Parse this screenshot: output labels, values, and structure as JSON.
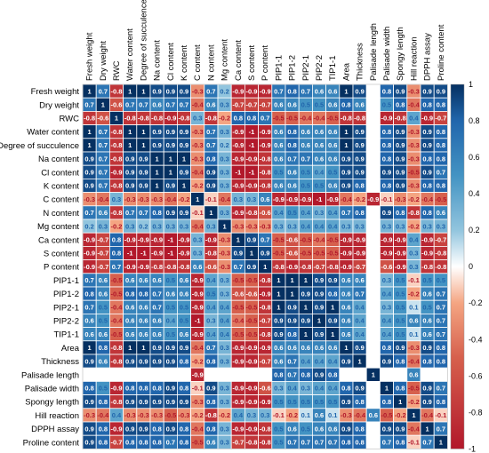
{
  "chart_data": {
    "type": "heatmap",
    "variables": [
      "Fresh weight",
      "Dry weight",
      "RWC",
      "Water content",
      "Degree of succulence",
      "Na content",
      "Cl content",
      "K content",
      "C content",
      "N content",
      "Mg content",
      "Ca content",
      "S content",
      "P content",
      "PIP1-1",
      "PIP1-2",
      "PIP2-1",
      "PIP2-2",
      "TIP1-1",
      "Area",
      "Thickness",
      "Palisade length",
      "Palisade width",
      "Spongy length",
      "Hill reaction",
      "DPPH assay",
      "Proline content"
    ],
    "matrix": [
      [
        1,
        0.7,
        -0.8,
        1,
        1,
        0.9,
        0.9,
        0.9,
        -0.3,
        0.7,
        0.2,
        -0.9,
        -0.9,
        -0.9,
        0.7,
        0.8,
        0.7,
        0.6,
        0.6,
        1,
        0.9,
        null,
        0.8,
        0.9,
        -0.3,
        0.9,
        0.9
      ],
      [
        0.7,
        1,
        -0.6,
        0.7,
        0.7,
        0.6,
        0.7,
        0.7,
        -0.4,
        0.6,
        0.3,
        -0.7,
        -0.7,
        -0.7,
        0.6,
        0.6,
        0.5,
        0.5,
        0.6,
        0.8,
        0.6,
        null,
        0.5,
        0.8,
        -0.4,
        0.8,
        0.8
      ],
      [
        -0.8,
        -0.6,
        1,
        -0.8,
        -0.8,
        -0.8,
        -0.9,
        -0.8,
        0.3,
        -0.8,
        -0.2,
        0.8,
        0.8,
        0.7,
        -0.5,
        -0.5,
        -0.4,
        -0.4,
        -0.5,
        -0.8,
        -0.8,
        null,
        -0.9,
        -0.8,
        0.4,
        -0.9,
        -0.7
      ],
      [
        1,
        0.7,
        -0.8,
        1,
        1,
        0.9,
        0.9,
        0.9,
        -0.3,
        0.7,
        0.3,
        -0.9,
        -1,
        -0.9,
        0.6,
        0.8,
        0.6,
        0.6,
        0.6,
        1,
        0.9,
        null,
        0.8,
        0.9,
        -0.3,
        0.9,
        0.8
      ],
      [
        1,
        0.7,
        -0.8,
        1,
        1,
        0.9,
        0.9,
        0.9,
        -0.3,
        0.7,
        0.2,
        -0.9,
        -1,
        -0.9,
        0.6,
        0.8,
        0.6,
        0.6,
        0.6,
        1,
        0.9,
        null,
        0.8,
        0.9,
        -0.3,
        0.9,
        0.8
      ],
      [
        0.9,
        0.7,
        -0.8,
        0.9,
        0.9,
        1,
        1,
        1,
        -0.3,
        0.8,
        0.3,
        -0.9,
        -0.9,
        -0.8,
        0.6,
        0.7,
        0.7,
        0.6,
        0.6,
        0.9,
        0.9,
        null,
        0.8,
        0.9,
        -0.3,
        0.8,
        0.8
      ],
      [
        0.9,
        0.7,
        -0.9,
        0.9,
        0.9,
        1,
        1,
        0.9,
        -0.4,
        0.9,
        0.3,
        -1,
        -1,
        -0.8,
        0.5,
        0.6,
        0.5,
        0.4,
        0.5,
        0.9,
        0.9,
        null,
        0.9,
        0.9,
        -0.5,
        0.9,
        0.7
      ],
      [
        0.9,
        0.7,
        -0.8,
        0.9,
        0.9,
        1,
        0.9,
        1,
        -0.2,
        0.9,
        0.3,
        -0.9,
        -0.9,
        -0.8,
        0.6,
        0.6,
        0.5,
        0.5,
        0.6,
        0.9,
        0.8,
        null,
        0.8,
        0.9,
        -0.3,
        0.8,
        0.8
      ],
      [
        -0.3,
        -0.4,
        0.3,
        -0.3,
        -0.3,
        -0.3,
        -0.4,
        -0.2,
        1,
        -0.1,
        -0.4,
        0.3,
        0.3,
        0.6,
        -0.9,
        -0.9,
        -0.9,
        -1,
        -0.9,
        -0.4,
        -0.2,
        -0.9,
        -0.1,
        -0.3,
        -0.2,
        -0.4,
        -0.5
      ],
      [
        0.7,
        0.6,
        -0.8,
        0.7,
        0.7,
        0.8,
        0.9,
        0.9,
        -0.1,
        1,
        0.3,
        -0.9,
        -0.8,
        -0.6,
        0.4,
        0.5,
        0.4,
        0.3,
        0.4,
        0.7,
        0.8,
        null,
        0.9,
        0.8,
        -0.8,
        0.8,
        0.6
      ],
      [
        0.2,
        0.3,
        -0.2,
        0.3,
        0.2,
        0.3,
        0.3,
        0.3,
        -0.4,
        0.3,
        1,
        -0.3,
        -0.3,
        -0.3,
        0.3,
        0.3,
        0.4,
        0.4,
        0.4,
        0.3,
        0.3,
        null,
        0.3,
        0.3,
        -0.2,
        0.3,
        0.3
      ],
      [
        -0.9,
        -0.7,
        0.8,
        -0.9,
        -0.9,
        -0.9,
        -1,
        -0.9,
        0.3,
        -0.9,
        -0.3,
        1,
        0.9,
        0.7,
        -0.5,
        -0.6,
        -0.5,
        -0.4,
        -0.5,
        -0.9,
        -0.9,
        null,
        -0.9,
        -0.9,
        0.4,
        -0.9,
        -0.7
      ],
      [
        -0.9,
        -0.7,
        0.8,
        -1,
        -1,
        -0.9,
        -1,
        -0.9,
        0.3,
        -0.8,
        -0.3,
        0.9,
        1,
        0.9,
        -0.5,
        -0.6,
        -0.5,
        -0.5,
        -0.5,
        -0.9,
        -0.9,
        null,
        -0.9,
        -0.9,
        0.3,
        -0.9,
        -0.8
      ],
      [
        -0.9,
        -0.7,
        0.7,
        -0.9,
        -0.9,
        -0.8,
        -0.8,
        -0.8,
        0.6,
        -0.6,
        -0.3,
        0.7,
        0.9,
        1,
        -0.8,
        -0.9,
        -0.8,
        -0.7,
        -0.8,
        -0.9,
        -0.7,
        null,
        -0.6,
        -0.9,
        0.3,
        -0.8,
        -0.8
      ],
      [
        0.7,
        0.6,
        -0.5,
        0.6,
        0.6,
        0.6,
        0.5,
        0.6,
        -0.9,
        0.4,
        0.3,
        -0.5,
        -0.5,
        -0.8,
        1,
        1,
        1,
        0.9,
        0.9,
        0.6,
        0.6,
        null,
        0.3,
        0.5,
        -0.1,
        0.5,
        0.5
      ],
      [
        0.8,
        0.6,
        -0.5,
        0.8,
        0.8,
        0.7,
        0.6,
        0.6,
        -0.9,
        0.5,
        0.3,
        -0.6,
        -0.6,
        -0.9,
        1,
        1,
        0.9,
        0.9,
        0.8,
        0.6,
        0.7,
        null,
        0.4,
        0.5,
        -0.2,
        0.6,
        0.7
      ],
      [
        0.7,
        0.5,
        -0.4,
        0.6,
        0.6,
        0.7,
        0.5,
        0.5,
        -0.9,
        0.4,
        0.4,
        -0.5,
        -0.5,
        -0.8,
        1,
        0.9,
        1,
        0.9,
        1,
        0.6,
        0.4,
        null,
        0.3,
        0.5,
        0.1,
        0.5,
        0.7
      ],
      [
        0.6,
        0.5,
        -0.4,
        0.6,
        0.6,
        0.6,
        0.4,
        0.5,
        -1,
        0.3,
        0.4,
        -0.4,
        -0.5,
        -0.7,
        0.9,
        0.9,
        0.9,
        1,
        0.9,
        0.6,
        0.4,
        null,
        0.4,
        0.5,
        0.6,
        0.6,
        0.7
      ],
      [
        0.6,
        0.6,
        -0.5,
        0.6,
        0.6,
        0.6,
        0.5,
        0.6,
        -0.9,
        0.4,
        0.4,
        -0.5,
        -0.5,
        -0.8,
        0.9,
        0.8,
        1,
        0.9,
        1,
        0.6,
        0.4,
        null,
        0.4,
        0.5,
        0.1,
        0.6,
        0.7
      ],
      [
        1,
        0.8,
        -0.8,
        1,
        1,
        0.9,
        0.9,
        0.9,
        -0.4,
        0.7,
        0.3,
        -0.9,
        -0.9,
        -0.9,
        0.6,
        0.6,
        0.6,
        0.6,
        0.6,
        1,
        0.9,
        null,
        0.8,
        0.9,
        -0.3,
        0.9,
        0.8
      ],
      [
        0.9,
        0.6,
        -0.8,
        0.9,
        0.9,
        0.9,
        0.9,
        0.8,
        -0.2,
        0.8,
        0.3,
        -0.9,
        -0.9,
        -0.7,
        0.6,
        0.7,
        0.4,
        0.4,
        0.4,
        0.9,
        1,
        null,
        0.9,
        0.8,
        -0.4,
        0.8,
        0.8
      ],
      [
        null,
        null,
        null,
        null,
        null,
        null,
        null,
        null,
        -0.9,
        null,
        null,
        null,
        null,
        null,
        0.8,
        0.7,
        0.8,
        0.9,
        0.8,
        null,
        null,
        1,
        null,
        null,
        0.6,
        null,
        null
      ],
      [
        0.8,
        0.5,
        -0.9,
        0.8,
        0.8,
        0.8,
        0.9,
        0.8,
        -0.1,
        0.9,
        0.3,
        -0.9,
        -0.9,
        -0.6,
        0.3,
        0.4,
        0.3,
        0.4,
        0.4,
        0.8,
        0.9,
        null,
        1,
        0.8,
        -0.5,
        0.9,
        0.7
      ],
      [
        0.9,
        0.8,
        -0.8,
        0.9,
        0.9,
        0.9,
        0.9,
        0.9,
        -0.3,
        0.8,
        0.3,
        -0.9,
        -0.9,
        -0.9,
        0.5,
        0.5,
        0.5,
        0.5,
        0.5,
        0.9,
        0.8,
        null,
        0.8,
        1,
        -0.2,
        0.9,
        0.8
      ],
      [
        -0.3,
        -0.4,
        0.4,
        -0.3,
        -0.3,
        -0.3,
        -0.5,
        -0.3,
        -0.2,
        -0.8,
        -0.2,
        0.4,
        0.3,
        0.3,
        -0.1,
        -0.2,
        0.1,
        0.6,
        0.1,
        -0.3,
        -0.4,
        0.6,
        -0.5,
        -0.2,
        1,
        -0.4,
        -0.1
      ],
      [
        0.9,
        0.8,
        -0.9,
        0.9,
        0.9,
        0.8,
        0.9,
        0.8,
        -0.4,
        0.8,
        0.3,
        -0.9,
        -0.9,
        -0.8,
        0.5,
        0.6,
        0.5,
        0.6,
        0.6,
        0.9,
        0.8,
        null,
        0.9,
        0.9,
        -0.4,
        1,
        0.7
      ],
      [
        0.9,
        0.8,
        -0.7,
        0.8,
        0.8,
        0.8,
        0.7,
        0.8,
        -0.5,
        0.6,
        0.3,
        -0.7,
        -0.8,
        -0.8,
        0.5,
        0.7,
        0.7,
        0.7,
        0.7,
        0.8,
        0.8,
        null,
        0.7,
        0.8,
        -0.1,
        0.7,
        1
      ]
    ],
    "colorbar_ticks": [
      1,
      0.8,
      0.6,
      0.4,
      0.2,
      0,
      -0.2,
      -0.4,
      -0.6,
      -0.8,
      -1
    ],
    "colors": {
      "negative": "#b2182b",
      "neutral": "#ffffff",
      "positive": "#053061"
    }
  }
}
